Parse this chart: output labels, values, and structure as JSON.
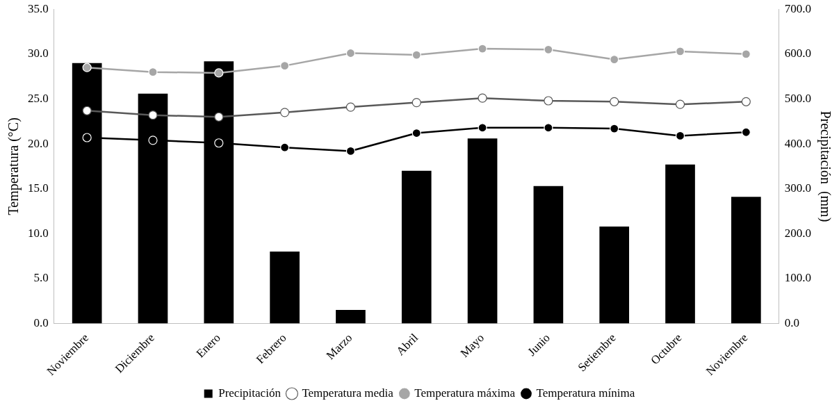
{
  "chart_data": {
    "type": "bar",
    "categories": [
      "Noviembre",
      "Diciembre",
      "Enero",
      "Febrero",
      "Marzo",
      "Abril",
      "Mayo",
      "Junio",
      "Setiembre",
      "Octubre",
      "Noviembre"
    ],
    "ylabel": "Temperatura (°C)",
    "y2label": "Precipitación  (mm)",
    "ylim": [
      0,
      35
    ],
    "yticks": [
      {
        "value": 0,
        "label": "0.0"
      },
      {
        "value": 5,
        "label": "5.0"
      },
      {
        "value": 10,
        "label": "10.0"
      },
      {
        "value": 15,
        "label": "15.0"
      },
      {
        "value": 20,
        "label": "20.0"
      },
      {
        "value": 25,
        "label": "25.0"
      },
      {
        "value": 30,
        "label": "30.0"
      },
      {
        "value": 35,
        "label": "35.0"
      }
    ],
    "y2lim": [
      0,
      700
    ],
    "y2ticks": [
      {
        "value": 0,
        "label": "0.0"
      },
      {
        "value": 100,
        "label": "100.0"
      },
      {
        "value": 200,
        "label": "200.0"
      },
      {
        "value": 300,
        "label": "300.0"
      },
      {
        "value": 400,
        "label": "400.0"
      },
      {
        "value": 500,
        "label": "500.0"
      },
      {
        "value": 600,
        "label": "600.0"
      },
      {
        "value": 700,
        "label": "700.0"
      }
    ],
    "grid": false,
    "legend": "bottom",
    "marker": "circle",
    "series": [
      {
        "name": "Precipitación",
        "axis": "y2",
        "color": "#000000",
        "values": [
          580,
          512,
          584,
          160,
          30,
          340,
          412,
          306,
          216,
          354,
          282
        ]
      },
      {
        "name": "Temperatura media",
        "type": "line",
        "color": "#595959",
        "values": [
          23.7,
          23.2,
          23.0,
          23.5,
          24.1,
          24.6,
          25.1,
          24.8,
          24.7,
          24.4,
          24.7
        ]
      },
      {
        "name": "Temperatura máxima",
        "type": "line",
        "color": "#a6a6a6",
        "values": [
          28.5,
          28.0,
          27.9,
          28.7,
          30.1,
          29.9,
          30.6,
          30.5,
          29.4,
          30.3,
          30.0
        ]
      },
      {
        "name": "Temperatura mínima",
        "type": "line",
        "color": "#000000",
        "values": [
          20.7,
          20.4,
          20.1,
          19.6,
          19.2,
          21.2,
          21.8,
          21.8,
          21.7,
          20.9,
          21.3
        ]
      }
    ]
  }
}
